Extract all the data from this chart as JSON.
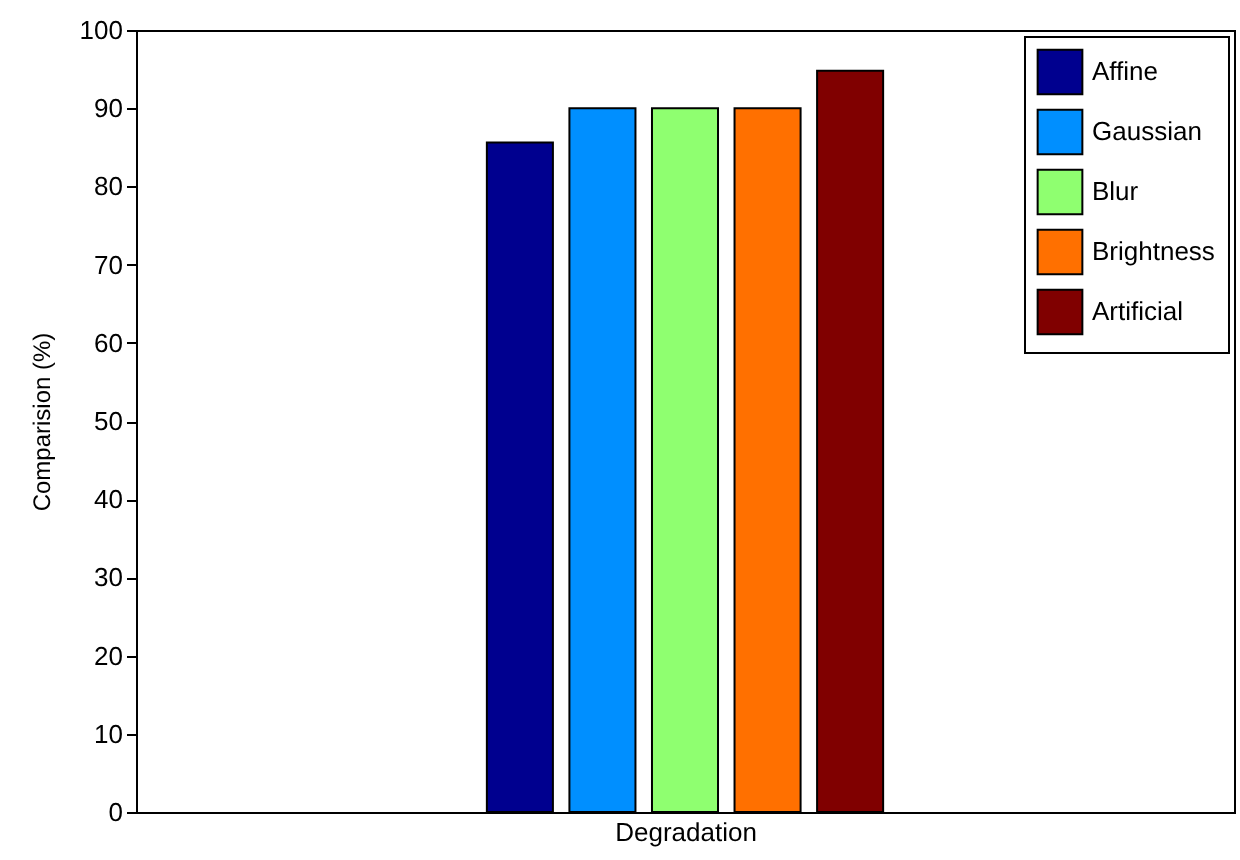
{
  "chart_data": {
    "type": "bar",
    "xlabel": "Degradation",
    "ylabel": "Comparision (%)",
    "categories": [
      null
    ],
    "series": [
      {
        "name": "Affine",
        "color": "#00008f",
        "values": [
          85.6
        ]
      },
      {
        "name": "Gaussian",
        "color": "#008fff",
        "values": [
          90
        ]
      },
      {
        "name": "Blur",
        "color": "#8fff70",
        "values": [
          90
        ]
      },
      {
        "name": "Brightness",
        "color": "#ff7000",
        "values": [
          90
        ]
      },
      {
        "name": "Artificial",
        "color": "#800000",
        "values": [
          94.8
        ]
      }
    ],
    "ylim": [
      0,
      100
    ],
    "yticks": [
      0,
      10,
      20,
      30,
      40,
      50,
      60,
      70,
      80,
      90,
      100
    ],
    "grid": false,
    "legend": "top right"
  }
}
